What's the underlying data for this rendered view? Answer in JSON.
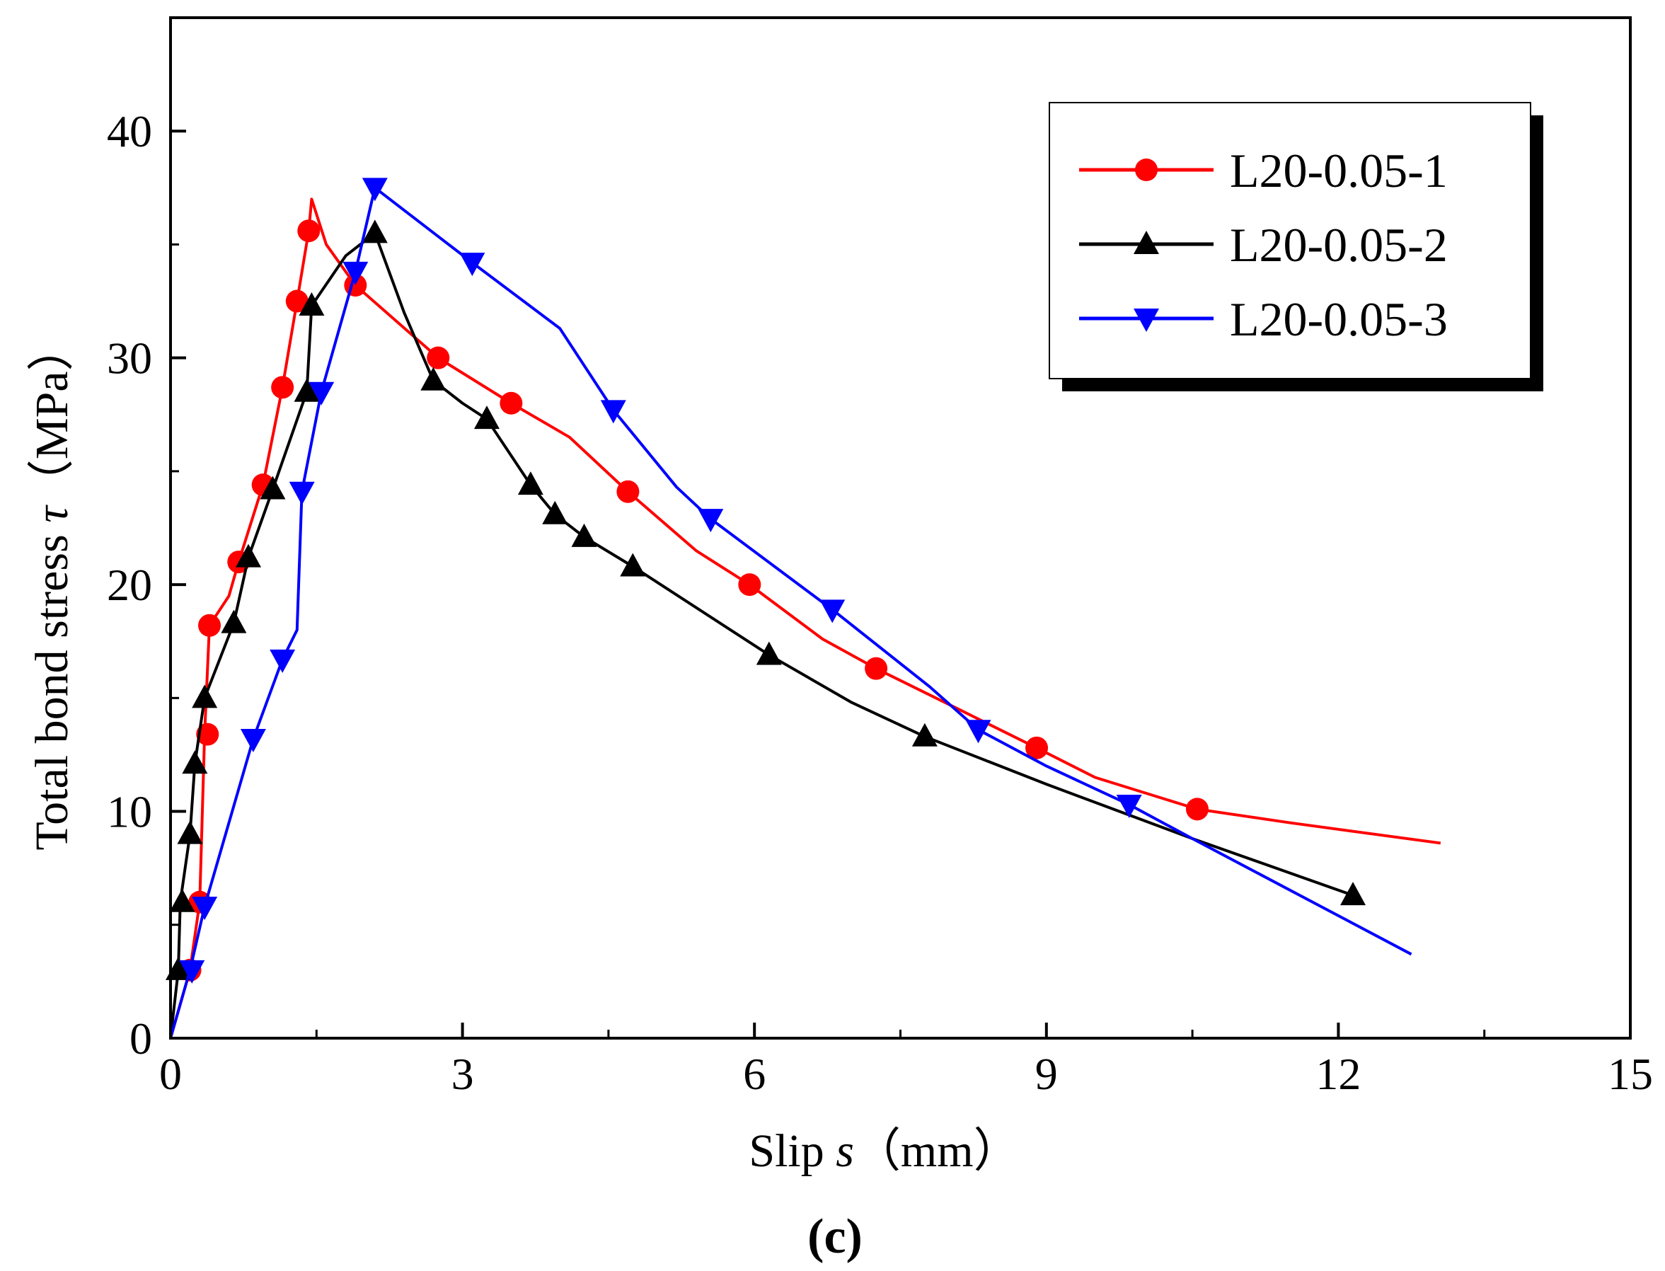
{
  "chart_data": {
    "type": "line",
    "panel_label": "(c)",
    "xlabel": {
      "prefix": "Slip ",
      "symbol": "s",
      "unit": "（mm）"
    },
    "ylabel": {
      "prefix": "Total bond stress ",
      "symbol": "τ",
      "unit": "（MPa）"
    },
    "xlim": [
      0,
      15
    ],
    "ylim": [
      0,
      45
    ],
    "xticks": [
      0,
      3,
      6,
      9,
      12,
      15
    ],
    "yticks": [
      0,
      10,
      20,
      30,
      40
    ],
    "xtick_labels": [
      "0",
      "3",
      "6",
      "9",
      "12",
      "15"
    ],
    "ytick_labels": [
      "0",
      "10",
      "20",
      "30",
      "40"
    ],
    "grid": false,
    "legend_position": "top-right",
    "series": [
      {
        "name": "L20-0.05-1",
        "color": "#ff0000",
        "marker": "circle",
        "line": [
          [
            0,
            0
          ],
          [
            0.2,
            3
          ],
          [
            0.3,
            6
          ],
          [
            0.35,
            13.4
          ],
          [
            0.4,
            18.2
          ],
          [
            0.6,
            19.5
          ],
          [
            0.7,
            21
          ],
          [
            0.95,
            24.4
          ],
          [
            1.15,
            28.7
          ],
          [
            1.3,
            32.5
          ],
          [
            1.42,
            35.6
          ],
          [
            1.45,
            37
          ],
          [
            1.6,
            35
          ],
          [
            1.9,
            33.2
          ],
          [
            2.75,
            30
          ],
          [
            3.5,
            28
          ],
          [
            4.1,
            26.5
          ],
          [
            4.7,
            24.1
          ],
          [
            5.4,
            21.5
          ],
          [
            5.95,
            20
          ],
          [
            6.7,
            17.6
          ],
          [
            7.25,
            16.3
          ],
          [
            8.1,
            14.5
          ],
          [
            8.9,
            12.8
          ],
          [
            9.5,
            11.5
          ],
          [
            10.55,
            10.1
          ],
          [
            11.5,
            9.5
          ],
          [
            13.05,
            8.6
          ]
        ],
        "markers": [
          [
            0.2,
            3
          ],
          [
            0.3,
            6
          ],
          [
            0.38,
            13.4
          ],
          [
            0.4,
            18.2
          ],
          [
            0.7,
            21
          ],
          [
            0.95,
            24.4
          ],
          [
            1.15,
            28.7
          ],
          [
            1.3,
            32.5
          ],
          [
            1.42,
            35.6
          ],
          [
            1.9,
            33.2
          ],
          [
            2.75,
            30
          ],
          [
            3.5,
            28
          ],
          [
            4.7,
            24.1
          ],
          [
            5.95,
            20
          ],
          [
            7.25,
            16.3
          ],
          [
            8.9,
            12.8
          ],
          [
            10.55,
            10.1
          ]
        ]
      },
      {
        "name": "L20-0.05-2",
        "color": "#000000",
        "marker": "triangle-up",
        "line": [
          [
            0,
            0
          ],
          [
            0.08,
            3
          ],
          [
            0.1,
            6
          ],
          [
            0.2,
            9
          ],
          [
            0.25,
            12.1
          ],
          [
            0.35,
            15
          ],
          [
            0.65,
            18.3
          ],
          [
            0.8,
            21.2
          ],
          [
            1.05,
            24.2
          ],
          [
            1.4,
            28.5
          ],
          [
            1.45,
            32.3
          ],
          [
            1.8,
            34.5
          ],
          [
            2.1,
            35.5
          ],
          [
            2.4,
            32
          ],
          [
            2.7,
            29
          ],
          [
            3.0,
            28
          ],
          [
            3.25,
            27.3
          ],
          [
            3.7,
            24.4
          ],
          [
            3.95,
            23.1
          ],
          [
            4.25,
            22.1
          ],
          [
            4.75,
            20.8
          ],
          [
            6.15,
            16.9
          ],
          [
            7,
            14.8
          ],
          [
            7.75,
            13.3
          ],
          [
            9,
            11.2
          ],
          [
            10.5,
            8.8
          ],
          [
            12.15,
            6.3
          ]
        ],
        "markers": [
          [
            0.08,
            3
          ],
          [
            0.12,
            6
          ],
          [
            0.2,
            9
          ],
          [
            0.25,
            12.1
          ],
          [
            0.35,
            15
          ],
          [
            0.65,
            18.3
          ],
          [
            0.8,
            21.2
          ],
          [
            1.05,
            24.2
          ],
          [
            1.4,
            28.5
          ],
          [
            1.45,
            32.3
          ],
          [
            2.1,
            35.5
          ],
          [
            2.7,
            29
          ],
          [
            3.25,
            27.3
          ],
          [
            3.7,
            24.4
          ],
          [
            3.95,
            23.1
          ],
          [
            4.25,
            22.1
          ],
          [
            4.75,
            20.8
          ],
          [
            6.15,
            16.9
          ],
          [
            7.75,
            13.3
          ],
          [
            12.15,
            6.3
          ]
        ]
      },
      {
        "name": "L20-0.05-3",
        "color": "#0000ff",
        "marker": "triangle-down",
        "line": [
          [
            0,
            0
          ],
          [
            0.2,
            3
          ],
          [
            0.35,
            5.8
          ],
          [
            0.85,
            13.2
          ],
          [
            1.15,
            16.7
          ],
          [
            1.3,
            18
          ],
          [
            1.35,
            24.1
          ],
          [
            1.55,
            28.5
          ],
          [
            1.9,
            33.8
          ],
          [
            2.1,
            37.5
          ],
          [
            3.1,
            34.2
          ],
          [
            4.0,
            31.3
          ],
          [
            4.55,
            27.7
          ],
          [
            5.2,
            24.3
          ],
          [
            5.55,
            22.9
          ],
          [
            6.8,
            18.9
          ],
          [
            7.8,
            15.5
          ],
          [
            8.3,
            13.6
          ],
          [
            9.0,
            12
          ],
          [
            9.85,
            10.3
          ],
          [
            10.5,
            8.8
          ],
          [
            12.75,
            3.7
          ]
        ],
        "markers": [
          [
            0.22,
            3
          ],
          [
            0.35,
            5.8
          ],
          [
            0.85,
            13.2
          ],
          [
            1.15,
            16.7
          ],
          [
            1.35,
            24.1
          ],
          [
            1.55,
            28.5
          ],
          [
            1.9,
            33.8
          ],
          [
            2.1,
            37.5
          ],
          [
            3.1,
            34.2
          ],
          [
            4.55,
            27.7
          ],
          [
            5.55,
            22.9
          ],
          [
            6.8,
            18.9
          ],
          [
            8.3,
            13.6
          ],
          [
            9.85,
            10.3
          ]
        ]
      }
    ]
  }
}
